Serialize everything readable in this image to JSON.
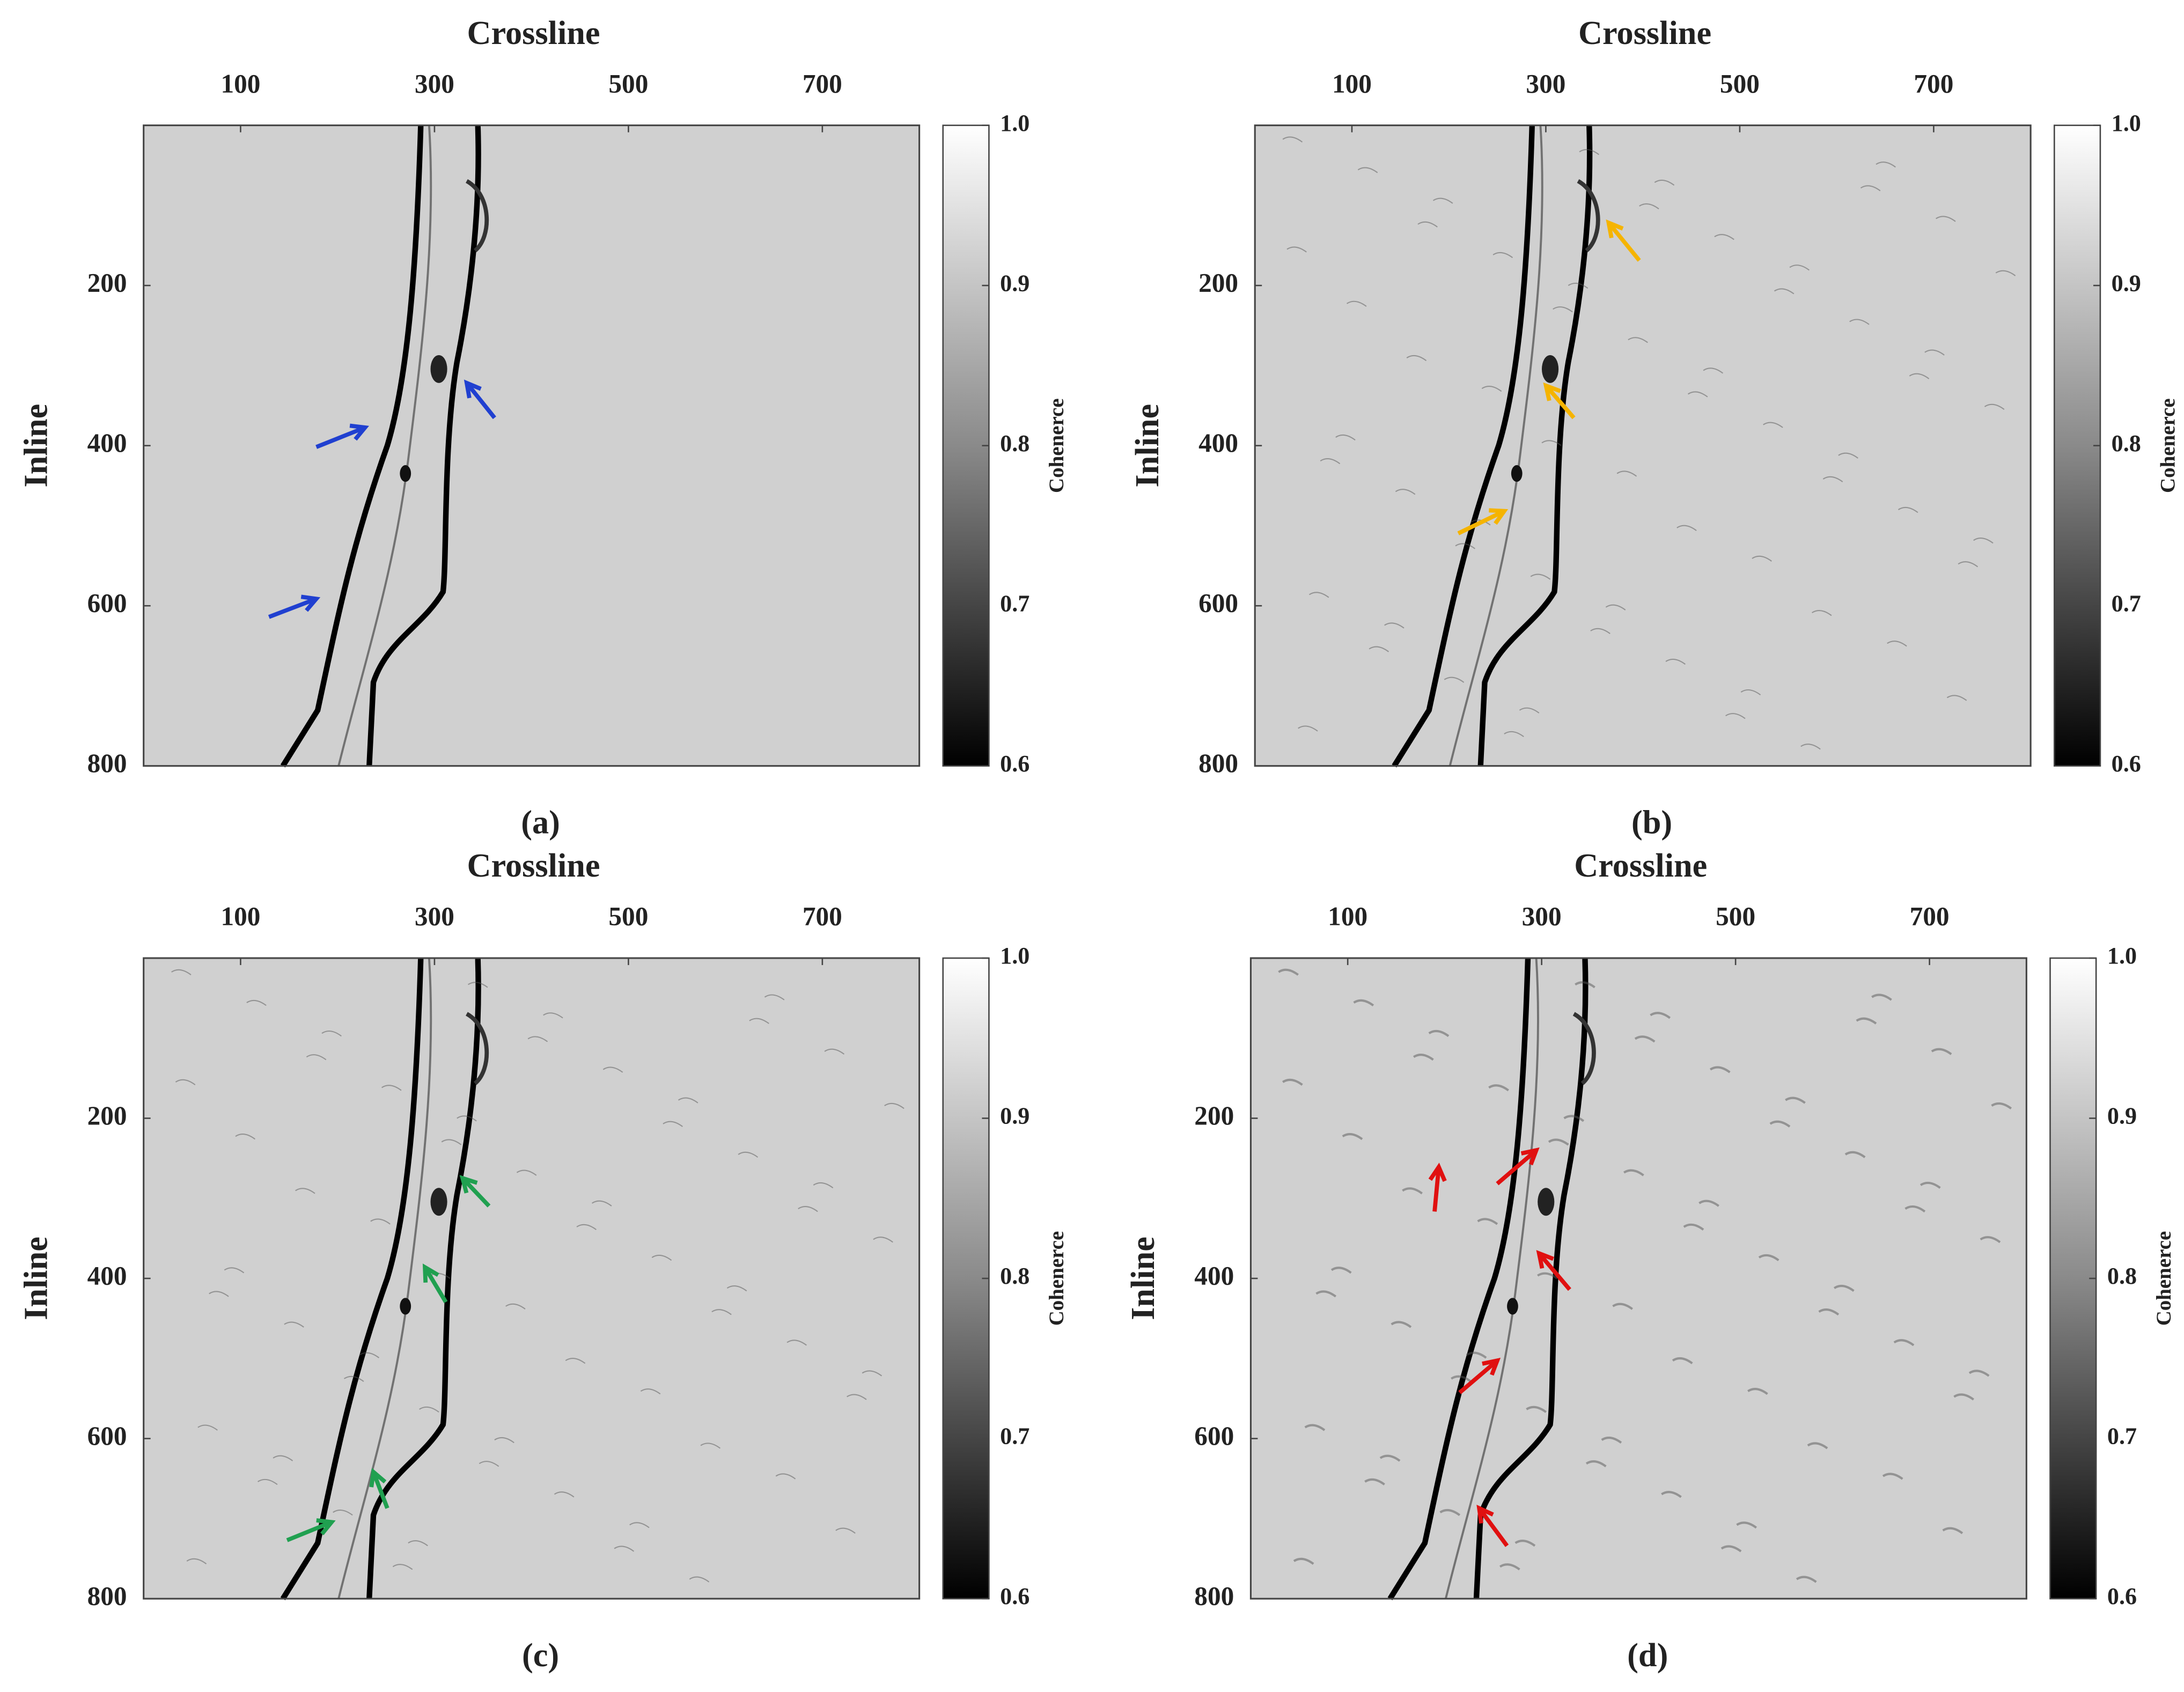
{
  "chart_data": [
    {
      "type": "image",
      "xlabel": "Crossline",
      "ylabel": "Inline",
      "xlim": [
        0,
        800
      ],
      "xticks": [
        100,
        300,
        500,
        700
      ],
      "ylim": [
        0,
        800
      ],
      "yticks": [
        200,
        400,
        600,
        800
      ],
      "colorbar": {
        "label": "Cohenerce",
        "lim": [
          0.6,
          1
        ],
        "ticks": [
          {
            "value": 1,
            "label": "1.0"
          },
          0.9,
          0.8,
          0.7,
          0.6
        ]
      },
      "caption": "(a)"
    },
    {
      "type": "image",
      "xlabel": "Crossline",
      "ylabel": "Inline",
      "xlim": [
        0,
        800
      ],
      "xticks": [
        100,
        300,
        500,
        700
      ],
      "ylim": [
        0,
        800
      ],
      "yticks": [
        200,
        400,
        600,
        800
      ],
      "colorbar": {
        "label": "Cohenerce",
        "lim": [
          0.6,
          1
        ],
        "ticks": [
          {
            "value": 1,
            "label": "1.0"
          },
          0.9,
          0.8,
          0.7,
          0.6
        ]
      },
      "caption": "(b)"
    },
    {
      "type": "image",
      "xlabel": "Crossline",
      "ylabel": "Inline",
      "xlim": [
        0,
        800
      ],
      "xticks": [
        100,
        300,
        500,
        700
      ],
      "ylim": [
        0,
        800
      ],
      "yticks": [
        200,
        400,
        600,
        800
      ],
      "colorbar": {
        "label": "Cohenerce",
        "lim": [
          0.6,
          1
        ],
        "ticks": [
          {
            "value": 1,
            "label": "1.0"
          },
          0.9,
          0.8,
          0.7,
          0.6
        ]
      },
      "caption": "(c)"
    },
    {
      "type": "image",
      "xlabel": "Crossline",
      "ylabel": "Inline",
      "xlim": [
        0,
        800
      ],
      "xticks": [
        100,
        300,
        500,
        700
      ],
      "ylim": [
        0,
        800
      ],
      "yticks": [
        200,
        400,
        600,
        800
      ],
      "colorbar": {
        "label": "Cohenerce",
        "lim": [
          0.6,
          1
        ],
        "ticks": [
          {
            "value": 1,
            "label": "1.0"
          },
          0.9,
          0.8,
          0.7,
          0.6
        ]
      },
      "caption": "(d)"
    }
  ]
}
